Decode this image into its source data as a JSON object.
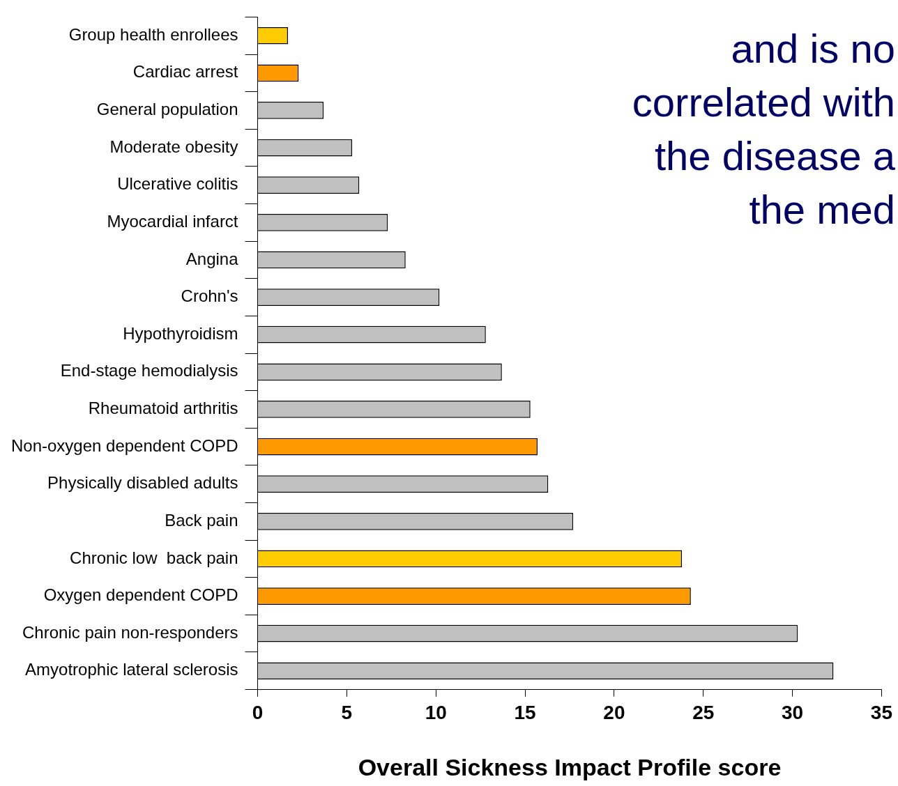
{
  "chart_data": {
    "type": "bar",
    "orientation": "horizontal",
    "xlabel": "Overall Sickness Impact Profile score",
    "categories": [
      "Group health enrollees",
      "Cardiac arrest",
      "General population",
      "Moderate obesity",
      "Ulcerative colitis",
      "Myocardial infarct",
      "Angina",
      "Crohn's",
      "Hypothyroidism",
      "End-stage hemodialysis",
      "Rheumatoid arthritis",
      "Non-oxygen dependent COPD",
      "Physically disabled adults",
      "Back pain",
      "Chronic low  back pain",
      "Oxygen dependent COPD",
      "Chronic pain non-responders",
      "Amyotrophic lateral sclerosis"
    ],
    "values": [
      1.7,
      2.3,
      3.7,
      5.3,
      5.7,
      7.3,
      8.3,
      10.2,
      12.8,
      13.7,
      15.3,
      15.7,
      16.3,
      17.7,
      23.8,
      24.3,
      30.3,
      32.3
    ],
    "colors": [
      "#ffcc00",
      "#ff9900",
      "#c0c0c0",
      "#c0c0c0",
      "#c0c0c0",
      "#c0c0c0",
      "#c0c0c0",
      "#c0c0c0",
      "#c0c0c0",
      "#c0c0c0",
      "#c0c0c0",
      "#ff9900",
      "#c0c0c0",
      "#c0c0c0",
      "#ffcc00",
      "#ff9900",
      "#c0c0c0",
      "#c0c0c0"
    ],
    "xlim": [
      0,
      35
    ],
    "xticks": [
      0,
      5,
      10,
      15,
      20,
      25,
      30,
      35
    ],
    "grid": false,
    "legend": false,
    "annotations": [
      "and is no",
      "correlated with",
      "the disease a",
      "the med"
    ]
  }
}
